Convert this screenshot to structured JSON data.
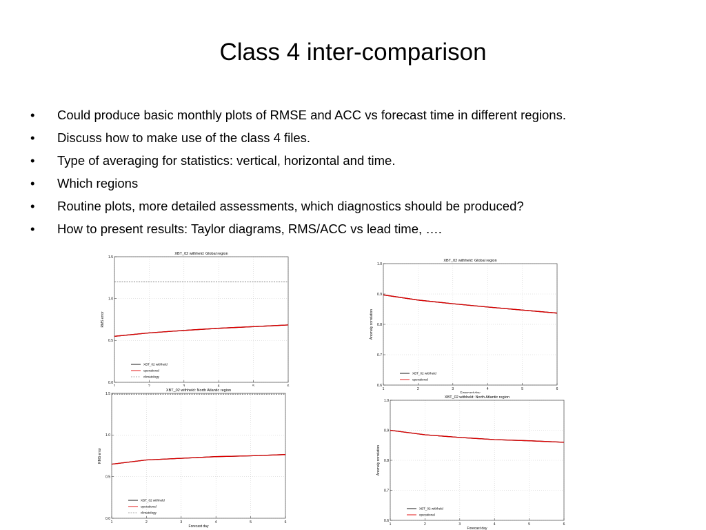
{
  "slide": {
    "title": "Class 4 inter-comparison",
    "bullet_symbol": "•",
    "bullets": [
      "Could produce basic monthly plots of RMSE and ACC vs forecast time in different regions.",
      "Discuss how to make use of the class 4 files.",
      "Type of averaging for statistics: vertical, horizontal and time.",
      "Which regions",
      "Routine plots, more detailed assessments, which diagnostics should be produced?",
      "How to present results: Taylor diagrams, RMS/ACC vs lead time, …."
    ]
  },
  "chart_data": [
    {
      "type": "line",
      "title": "XBT_02 withheld: Global region",
      "xlabel": "Forecast day",
      "ylabel": "RMS error",
      "xlim": [
        1,
        6
      ],
      "ylim": [
        0.0,
        1.5
      ],
      "xticks": [
        "1",
        "2",
        "3",
        "4",
        "5",
        "6"
      ],
      "yticks": [
        "0.0",
        "0.5",
        "1.0",
        "1.5"
      ],
      "grid": true,
      "legend_position": "bottom-left",
      "x": [
        1,
        2,
        3,
        4,
        5,
        6
      ],
      "series": [
        {
          "name": "XBT_02 withheld",
          "color": "#000000",
          "dash": "solid",
          "values": [
            0.55,
            0.59,
            0.62,
            0.645,
            0.665,
            0.685
          ]
        },
        {
          "name": "operational",
          "color": "#e00000",
          "dash": "solid",
          "values": [
            0.55,
            0.59,
            0.62,
            0.645,
            0.665,
            0.685
          ]
        },
        {
          "name": "climatology",
          "color": "#555555",
          "dash": "dashed",
          "values": [
            1.2,
            1.2,
            1.2,
            1.2,
            1.2,
            1.2
          ]
        }
      ]
    },
    {
      "type": "line",
      "title": "XBT_02 withheld: Global region",
      "xlabel": "Forecast day",
      "ylabel": "Anomaly correlation",
      "xlim": [
        1,
        6
      ],
      "ylim": [
        0.6,
        1.0
      ],
      "xticks": [
        "1",
        "2",
        "3",
        "4",
        "5",
        "6"
      ],
      "yticks": [
        "0.6",
        "0.7",
        "0.8",
        "0.9",
        "1.0"
      ],
      "grid": true,
      "legend_position": "bottom-left",
      "x": [
        1,
        2,
        3,
        4,
        5,
        6
      ],
      "series": [
        {
          "name": "XBT_02 withheld",
          "color": "#000000",
          "dash": "solid",
          "values": [
            0.897,
            0.88,
            0.868,
            0.857,
            0.847,
            0.837
          ]
        },
        {
          "name": "operational",
          "color": "#e00000",
          "dash": "solid",
          "values": [
            0.897,
            0.88,
            0.868,
            0.857,
            0.847,
            0.837
          ]
        }
      ]
    },
    {
      "type": "line",
      "title": "XBT_02 withheld: North Atlantic region",
      "xlabel": "Forecast day",
      "ylabel": "RMS error",
      "xlim": [
        1,
        6
      ],
      "ylim": [
        0.0,
        1.5
      ],
      "xticks": [
        "1",
        "2",
        "3",
        "4",
        "5",
        "6"
      ],
      "yticks": [
        "0.0",
        "0.5",
        "1.0",
        "1.5"
      ],
      "grid": true,
      "legend_position": "bottom-left",
      "x": [
        1,
        2,
        3,
        4,
        5,
        6
      ],
      "series": [
        {
          "name": "XBT_02 withheld",
          "color": "#000000",
          "dash": "solid",
          "values": [
            0.65,
            0.7,
            0.72,
            0.74,
            0.75,
            0.765
          ]
        },
        {
          "name": "operational",
          "color": "#e00000",
          "dash": "solid",
          "values": [
            0.65,
            0.7,
            0.72,
            0.74,
            0.75,
            0.765
          ]
        },
        {
          "name": "climatology",
          "color": "#555555",
          "dash": "dashed",
          "values": [
            1.49,
            1.49,
            1.49,
            1.49,
            1.49,
            1.49
          ]
        }
      ]
    },
    {
      "type": "line",
      "title": "XBT_02 withheld: North Atlantic region",
      "xlabel": "Forecast day",
      "ylabel": "Anomaly correlation",
      "xlim": [
        1,
        6
      ],
      "ylim": [
        0.6,
        1.0
      ],
      "xticks": [
        "1",
        "2",
        "3",
        "4",
        "5",
        "6"
      ],
      "yticks": [
        "0.6",
        "0.7",
        "0.8",
        "0.9",
        "1.0"
      ],
      "grid": true,
      "legend_position": "bottom-left",
      "x": [
        1,
        2,
        3,
        4,
        5,
        6
      ],
      "series": [
        {
          "name": "XBT_02 withheld",
          "color": "#000000",
          "dash": "solid",
          "values": [
            0.9,
            0.885,
            0.876,
            0.869,
            0.865,
            0.86
          ]
        },
        {
          "name": "operational",
          "color": "#e00000",
          "dash": "solid",
          "values": [
            0.9,
            0.885,
            0.876,
            0.869,
            0.865,
            0.86
          ]
        }
      ]
    }
  ]
}
